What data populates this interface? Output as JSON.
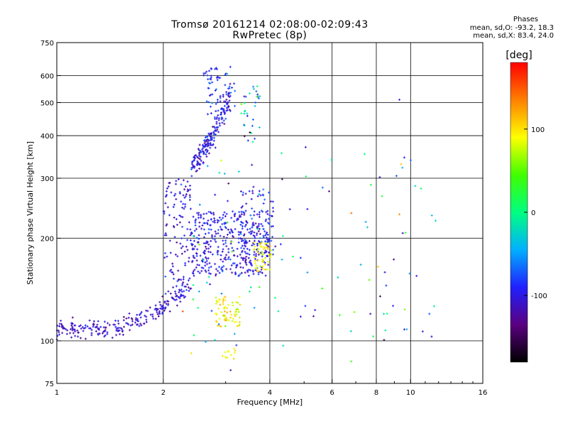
{
  "chart_data": {
    "type": "scatter",
    "title": "Tromsø 20161214 02:08:00-02:09:43",
    "subtitle": "RwPretec (8p)",
    "xlabel": "Frequency [MHz]",
    "ylabel": "Stationary phase Virtual Height [km]",
    "x_scale": "log",
    "y_scale": "log",
    "xlim": [
      1,
      16
    ],
    "ylim": [
      75,
      750
    ],
    "x_ticks": [
      1,
      2,
      4,
      6,
      8,
      10,
      16
    ],
    "x_gridlines": [
      2,
      4,
      6,
      8,
      10
    ],
    "y_ticks": [
      75,
      100,
      200,
      300,
      400,
      500,
      600,
      750
    ],
    "y_gridlines": [
      100,
      200,
      300,
      400,
      500,
      600
    ],
    "grid": true,
    "colorbar": {
      "label": "[deg]",
      "range": [
        -180,
        180
      ],
      "ticks": [
        -100,
        0,
        100
      ],
      "colors": [
        "#000000",
        "#5a0080",
        "#2020ff",
        "#00b0ff",
        "#00ff80",
        "#40ff00",
        "#ffff00",
        "#ff8000",
        "#ff0000"
      ]
    },
    "legend": {
      "title": "Phases",
      "lines": [
        "mean, sd,O: -93.2, 18.3",
        "mean, sd,X:  83.4, 24.0"
      ]
    },
    "clusters": [
      {
        "x_range": [
          1.0,
          2.3
        ],
        "y_trend": [
          [
            1.0,
            108
          ],
          [
            1.4,
            108
          ],
          [
            1.8,
            118
          ],
          [
            2.2,
            135
          ],
          [
            2.3,
            150
          ]
        ],
        "count": 220,
        "spread_y": 0.045,
        "phase_mean": -110,
        "phase_sd": 18
      },
      {
        "x_range": [
          2.0,
          2.4
        ],
        "y_range": [
          130,
          300
        ],
        "count": 130,
        "phase_mean": -105,
        "phase_sd": 22
      },
      {
        "x_range": [
          2.4,
          4.0
        ],
        "y_range": [
          155,
          240
        ],
        "count": 380,
        "phase_mean": -100,
        "phase_sd": 20
      },
      {
        "x_range": [
          3.3,
          4.1
        ],
        "y_range": [
          175,
          280
        ],
        "count": 90,
        "phase_mean": -90,
        "phase_sd": 25
      },
      {
        "x_range": [
          2.4,
          3.1
        ],
        "y_trend": [
          [
            2.4,
            320
          ],
          [
            2.75,
            400
          ],
          [
            3.1,
            520
          ]
        ],
        "count": 180,
        "spread_y": 0.06,
        "phase_mean": -100,
        "phase_sd": 25
      },
      {
        "x_range": [
          2.6,
          3.2
        ],
        "y_range": [
          450,
          640
        ],
        "count": 70,
        "phase_mean": -95,
        "phase_sd": 30
      },
      {
        "x_range": [
          3.3,
          3.75
        ],
        "y_range": [
          380,
          560
        ],
        "count": 35,
        "phase_mean": -40,
        "phase_sd": 70
      },
      {
        "x_range": [
          3.6,
          4.05
        ],
        "y_range": [
          160,
          195
        ],
        "count": 55,
        "phase_mean": 90,
        "phase_sd": 25
      },
      {
        "x_range": [
          2.8,
          3.3
        ],
        "y_range": [
          110,
          135
        ],
        "count": 70,
        "phase_mean": 95,
        "phase_sd": 20
      },
      {
        "x_range": [
          2.9,
          3.2
        ],
        "y_range": [
          88,
          95
        ],
        "count": 12,
        "phase_mean": 95,
        "phase_sd": 10
      },
      {
        "x_range": [
          2.4,
          5.0
        ],
        "y_range": [
          95,
          360
        ],
        "count": 60,
        "phase_mean": -60,
        "phase_sd": 90
      },
      {
        "x_range": [
          5.0,
          12.0
        ],
        "y_range": [
          100,
          360
        ],
        "count": 45,
        "phase_mean": -40,
        "phase_sd": 90
      }
    ],
    "points": [
      {
        "x": 9.3,
        "y": 510,
        "phase": -95
      },
      {
        "x": 9.6,
        "y": 345,
        "phase": -100
      },
      {
        "x": 9.4,
        "y": 330,
        "phase": 110
      },
      {
        "x": 5.05,
        "y": 370,
        "phase": -110
      },
      {
        "x": 6.8,
        "y": 237,
        "phase": 140
      },
      {
        "x": 9.5,
        "y": 207,
        "phase": -120
      },
      {
        "x": 9.3,
        "y": 235,
        "phase": 130
      },
      {
        "x": 10.4,
        "y": 155,
        "phase": -100
      },
      {
        "x": 11.3,
        "y": 120,
        "phase": -70
      },
      {
        "x": 9.6,
        "y": 108,
        "phase": -110
      },
      {
        "x": 6.8,
        "y": 87,
        "phase": 40
      },
      {
        "x": 7.7,
        "y": 120,
        "phase": -110
      },
      {
        "x": 8.4,
        "y": 120,
        "phase": -20
      },
      {
        "x": 8.1,
        "y": 165,
        "phase": 110
      },
      {
        "x": 2.27,
        "y": 122,
        "phase": 150
      },
      {
        "x": 2.4,
        "y": 92,
        "phase": 100
      },
      {
        "x": 3.1,
        "y": 82,
        "phase": -110
      }
    ]
  }
}
